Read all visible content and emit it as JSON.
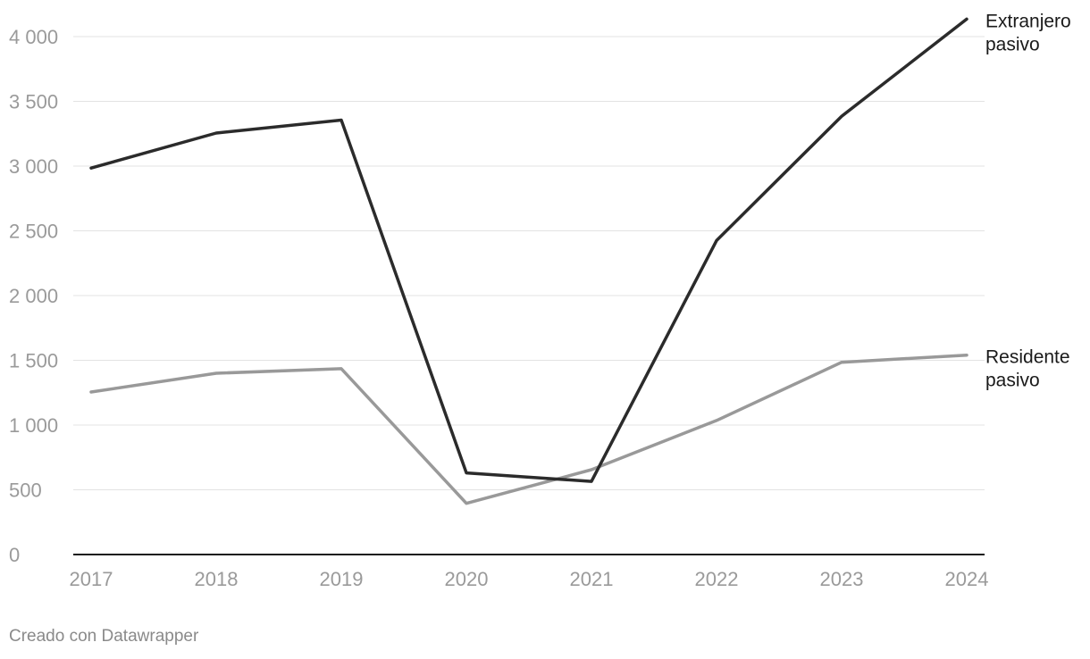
{
  "chart_data": {
    "type": "line",
    "title": "",
    "xlabel": "",
    "ylabel": "",
    "x": [
      "2017",
      "2018",
      "2019",
      "2020",
      "2021",
      "2022",
      "2023",
      "2024"
    ],
    "y_ticks": [
      "0",
      "500",
      "1 000",
      "1 500",
      "2 000",
      "2 500",
      "3 000",
      "3 500",
      "4 000"
    ],
    "ylim": [
      0,
      4000
    ],
    "grid": true,
    "legend": "direct labels at line ends",
    "series": [
      {
        "name_lines": [
          "Extranjero",
          "pasivo"
        ],
        "color": "#2b2b2b",
        "values": [
          2985,
          3255,
          3355,
          630,
          565,
          2425,
          3385,
          4135
        ]
      },
      {
        "name_lines": [
          "Residente",
          "pasivo"
        ],
        "color": "#999999",
        "values": [
          1255,
          1400,
          1435,
          395,
          655,
          1035,
          1485,
          1540
        ]
      }
    ]
  },
  "footer": {
    "credit": "Creado con Datawrapper"
  }
}
